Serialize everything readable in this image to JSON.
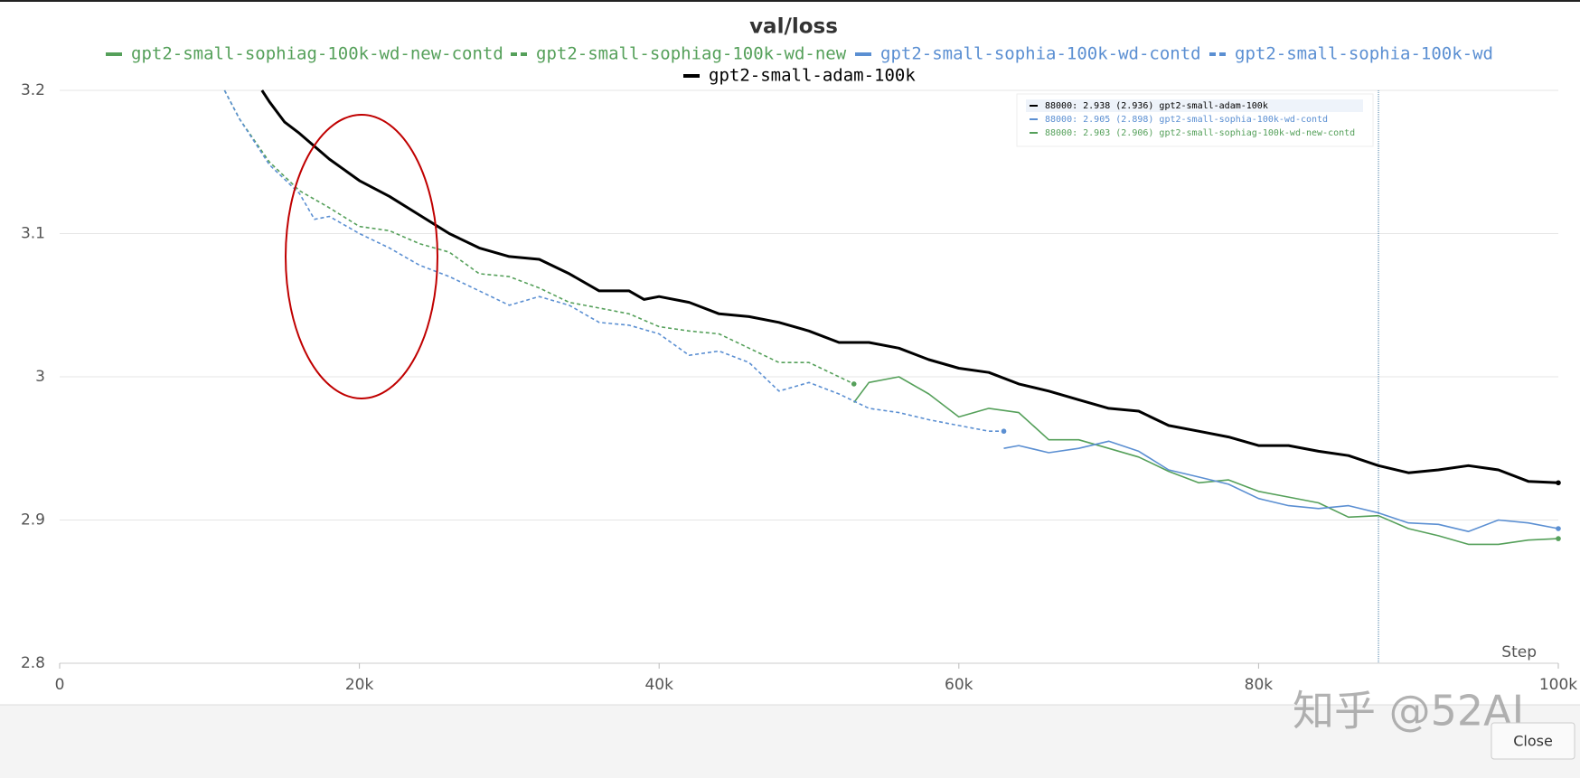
{
  "chart_data": {
    "type": "line",
    "title": "val/loss",
    "x_label": "Step",
    "xlim": [
      0,
      100000
    ],
    "xticks": [
      0,
      {
        "value": 20000,
        "label": "20k"
      },
      {
        "value": 40000,
        "label": "40k"
      },
      {
        "value": 60000,
        "label": "60k"
      },
      {
        "value": 80000,
        "label": "80k"
      },
      {
        "value": 100000,
        "label": "100k"
      }
    ],
    "ylim": [
      2.8,
      3.2
    ],
    "yticks": [
      2.8,
      2.9,
      3,
      3.1,
      3.2
    ],
    "grid": true,
    "series": [
      {
        "name": "gpt2-small-sophiag-100k-wd-new-contd",
        "color": "#55a05a",
        "dashed": false,
        "x": [
          53000,
          54000,
          56000,
          58000,
          60000,
          62000,
          64000,
          66000,
          68000,
          70000,
          72000,
          74000,
          76000,
          78000,
          80000,
          82000,
          84000,
          86000,
          88000,
          90000,
          92000,
          94000,
          96000,
          98000,
          100000
        ],
        "values": [
          2.982,
          2.996,
          3.0,
          2.988,
          2.972,
          2.978,
          2.975,
          2.956,
          2.956,
          2.95,
          2.944,
          2.934,
          2.926,
          2.928,
          2.92,
          2.916,
          2.912,
          2.902,
          2.903,
          2.894,
          2.889,
          2.883,
          2.883,
          2.886,
          2.887
        ]
      },
      {
        "name": "gpt2-small-sophiag-100k-wd-new",
        "color": "#55a05a",
        "dashed": true,
        "x": [
          11000,
          12000,
          14000,
          16000,
          18000,
          20000,
          22000,
          24000,
          26000,
          28000,
          30000,
          32000,
          34000,
          36000,
          38000,
          40000,
          42000,
          44000,
          46000,
          48000,
          50000,
          52000,
          53000
        ],
        "values": [
          3.2,
          3.18,
          3.15,
          3.13,
          3.118,
          3.105,
          3.102,
          3.093,
          3.087,
          3.072,
          3.07,
          3.062,
          3.052,
          3.048,
          3.044,
          3.035,
          3.032,
          3.03,
          3.02,
          3.01,
          3.01,
          3.0,
          2.995
        ]
      },
      {
        "name": "gpt2-small-sophia-100k-wd-contd",
        "color": "#5b8fd2",
        "dashed": false,
        "x": [
          63000,
          64000,
          66000,
          68000,
          70000,
          72000,
          74000,
          76000,
          78000,
          80000,
          82000,
          84000,
          86000,
          88000,
          90000,
          92000,
          94000,
          96000,
          98000,
          100000
        ],
        "values": [
          2.95,
          2.952,
          2.947,
          2.95,
          2.955,
          2.948,
          2.935,
          2.93,
          2.925,
          2.915,
          2.91,
          2.908,
          2.91,
          2.905,
          2.898,
          2.897,
          2.892,
          2.9,
          2.898,
          2.894
        ]
      },
      {
        "name": "gpt2-small-sophia-100k-wd",
        "color": "#5b8fd2",
        "dashed": true,
        "x": [
          11000,
          12000,
          14000,
          16000,
          17000,
          18000,
          20000,
          22000,
          24000,
          26000,
          28000,
          30000,
          32000,
          34000,
          36000,
          38000,
          40000,
          42000,
          44000,
          46000,
          48000,
          50000,
          52000,
          54000,
          56000,
          58000,
          60000,
          62000,
          63000
        ],
        "values": [
          3.2,
          3.18,
          3.148,
          3.128,
          3.11,
          3.112,
          3.1,
          3.09,
          3.078,
          3.07,
          3.06,
          3.05,
          3.056,
          3.05,
          3.038,
          3.036,
          3.03,
          3.015,
          3.018,
          3.01,
          2.99,
          2.996,
          2.988,
          2.978,
          2.975,
          2.97,
          2.966,
          2.962,
          2.962
        ]
      },
      {
        "name": "gpt2-small-adam-100k",
        "color": "#000000",
        "dashed": false,
        "x": [
          13500,
          14000,
          15000,
          16000,
          18000,
          20000,
          22000,
          24000,
          26000,
          28000,
          30000,
          32000,
          34000,
          36000,
          38000,
          39000,
          40000,
          42000,
          44000,
          46000,
          48000,
          50000,
          52000,
          54000,
          56000,
          58000,
          60000,
          62000,
          64000,
          66000,
          68000,
          70000,
          72000,
          74000,
          76000,
          78000,
          80000,
          82000,
          84000,
          86000,
          88000,
          90000,
          92000,
          94000,
          96000,
          98000,
          100000
        ],
        "values": [
          3.2,
          3.192,
          3.178,
          3.17,
          3.152,
          3.137,
          3.126,
          3.113,
          3.1,
          3.09,
          3.084,
          3.082,
          3.072,
          3.06,
          3.06,
          3.054,
          3.056,
          3.052,
          3.044,
          3.042,
          3.038,
          3.032,
          3.024,
          3.024,
          3.02,
          3.012,
          3.006,
          3.003,
          2.995,
          2.99,
          2.984,
          2.978,
          2.976,
          2.966,
          2.962,
          2.958,
          2.952,
          2.952,
          2.948,
          2.945,
          2.938,
          2.933,
          2.935,
          2.938,
          2.935,
          2.927,
          2.926
        ]
      }
    ],
    "tooltip": {
      "x": 88000,
      "rows": [
        {
          "text": "88000: 2.938 (2.936) gpt2-small-adam-100k",
          "color": "#000000"
        },
        {
          "text": "88000: 2.905 (2.898) gpt2-small-sophia-100k-wd-contd",
          "color": "#5b8fd2"
        },
        {
          "text": "88000: 2.903 (2.906) gpt2-small-sophiag-100k-wd-new-contd",
          "color": "#55a05a"
        }
      ]
    }
  },
  "close_button": "Close",
  "watermark": "知乎 @52AI"
}
